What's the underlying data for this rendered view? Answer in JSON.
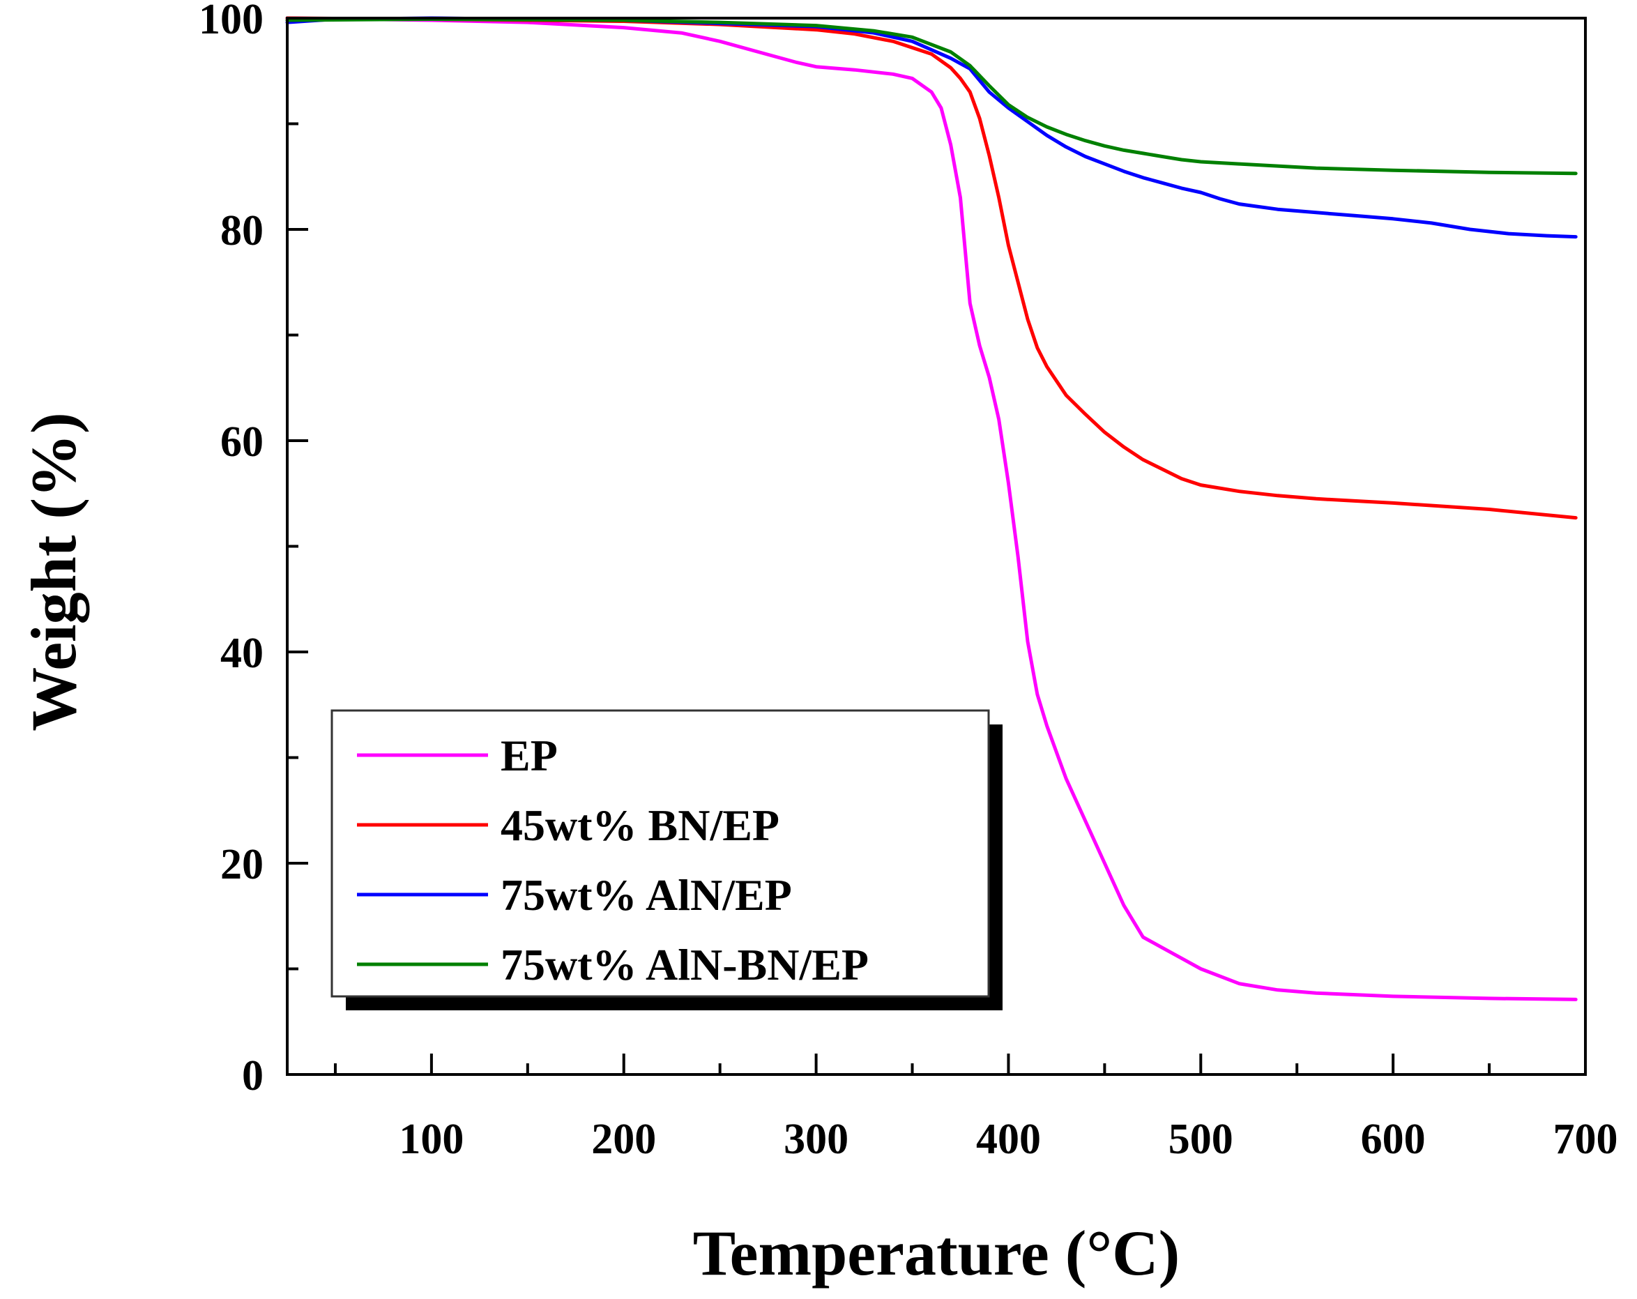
{
  "chart_data": {
    "type": "line",
    "title": "",
    "xlabel": "Temperature (°C)",
    "ylabel": "Weight (%)",
    "xlim": [
      25,
      700
    ],
    "ylim": [
      0,
      100
    ],
    "xticks": [
      100,
      200,
      300,
      400,
      500,
      600,
      700
    ],
    "yticks": [
      0,
      20,
      40,
      60,
      80,
      100
    ],
    "x_minor_step": 50,
    "y_minor_step": 10,
    "grid": false,
    "legend": {
      "position": "bottom-left",
      "shadow": true
    },
    "series": [
      {
        "name": "EP",
        "color": "#ff00ff",
        "points": [
          [
            25,
            100
          ],
          [
            100,
            99.8
          ],
          [
            150,
            99.6
          ],
          [
            200,
            99.1
          ],
          [
            230,
            98.6
          ],
          [
            250,
            97.8
          ],
          [
            270,
            96.8
          ],
          [
            290,
            95.8
          ],
          [
            300,
            95.4
          ],
          [
            320,
            95.1
          ],
          [
            340,
            94.7
          ],
          [
            350,
            94.3
          ],
          [
            360,
            93.0
          ],
          [
            365,
            91.5
          ],
          [
            370,
            88
          ],
          [
            375,
            83
          ],
          [
            378,
            77
          ],
          [
            380,
            73
          ],
          [
            385,
            69
          ],
          [
            390,
            66
          ],
          [
            395,
            62
          ],
          [
            400,
            56
          ],
          [
            405,
            49
          ],
          [
            410,
            41
          ],
          [
            415,
            36
          ],
          [
            420,
            33
          ],
          [
            430,
            28
          ],
          [
            440,
            24
          ],
          [
            450,
            20
          ],
          [
            460,
            16
          ],
          [
            470,
            13
          ],
          [
            475,
            12.5
          ],
          [
            480,
            12
          ],
          [
            490,
            11
          ],
          [
            500,
            10
          ],
          [
            520,
            8.6
          ],
          [
            540,
            8.0
          ],
          [
            560,
            7.7
          ],
          [
            600,
            7.4
          ],
          [
            650,
            7.2
          ],
          [
            695,
            7.1
          ]
        ]
      },
      {
        "name": "45wt% BN/EP",
        "color": "#ff0000",
        "points": [
          [
            25,
            100
          ],
          [
            100,
            99.9
          ],
          [
            200,
            99.7
          ],
          [
            250,
            99.4
          ],
          [
            300,
            98.9
          ],
          [
            320,
            98.5
          ],
          [
            340,
            97.8
          ],
          [
            360,
            96.6
          ],
          [
            370,
            95.3
          ],
          [
            375,
            94.3
          ],
          [
            380,
            93.0
          ],
          [
            385,
            90.5
          ],
          [
            390,
            87
          ],
          [
            395,
            83
          ],
          [
            400,
            78.5
          ],
          [
            405,
            75
          ],
          [
            410,
            71.5
          ],
          [
            415,
            68.8
          ],
          [
            420,
            67
          ],
          [
            430,
            64.3
          ],
          [
            440,
            62.5
          ],
          [
            450,
            60.8
          ],
          [
            460,
            59.4
          ],
          [
            470,
            58.2
          ],
          [
            480,
            57.3
          ],
          [
            490,
            56.4
          ],
          [
            500,
            55.8
          ],
          [
            520,
            55.2
          ],
          [
            540,
            54.8
          ],
          [
            560,
            54.5
          ],
          [
            580,
            54.3
          ],
          [
            600,
            54.1
          ],
          [
            650,
            53.5
          ],
          [
            695,
            52.7
          ]
        ]
      },
      {
        "name": "75wt% AlN/EP",
        "color": "#0000ff",
        "points": [
          [
            25,
            99.6
          ],
          [
            50,
            99.9
          ],
          [
            100,
            100
          ],
          [
            200,
            99.8
          ],
          [
            250,
            99.5
          ],
          [
            300,
            99.2
          ],
          [
            330,
            98.6
          ],
          [
            350,
            97.8
          ],
          [
            370,
            96.2
          ],
          [
            380,
            95.2
          ],
          [
            390,
            93.0
          ],
          [
            400,
            91.5
          ],
          [
            410,
            90.2
          ],
          [
            420,
            88.9
          ],
          [
            430,
            87.8
          ],
          [
            440,
            86.9
          ],
          [
            450,
            86.2
          ],
          [
            460,
            85.5
          ],
          [
            470,
            84.9
          ],
          [
            480,
            84.4
          ],
          [
            490,
            83.9
          ],
          [
            500,
            83.5
          ],
          [
            510,
            82.9
          ],
          [
            520,
            82.4
          ],
          [
            540,
            81.9
          ],
          [
            560,
            81.6
          ],
          [
            580,
            81.3
          ],
          [
            600,
            81.0
          ],
          [
            620,
            80.6
          ],
          [
            640,
            80.0
          ],
          [
            660,
            79.6
          ],
          [
            680,
            79.4
          ],
          [
            695,
            79.3
          ]
        ]
      },
      {
        "name": "75wt% AlN-BN/EP",
        "color": "#008000",
        "points": [
          [
            25,
            99.8
          ],
          [
            100,
            99.9
          ],
          [
            200,
            99.8
          ],
          [
            250,
            99.6
          ],
          [
            300,
            99.3
          ],
          [
            330,
            98.8
          ],
          [
            350,
            98.2
          ],
          [
            370,
            96.8
          ],
          [
            380,
            95.5
          ],
          [
            390,
            93.6
          ],
          [
            400,
            91.8
          ],
          [
            410,
            90.6
          ],
          [
            420,
            89.7
          ],
          [
            430,
            89.0
          ],
          [
            440,
            88.4
          ],
          [
            450,
            87.9
          ],
          [
            460,
            87.5
          ],
          [
            470,
            87.2
          ],
          [
            480,
            86.9
          ],
          [
            490,
            86.6
          ],
          [
            500,
            86.4
          ],
          [
            520,
            86.2
          ],
          [
            540,
            86.0
          ],
          [
            560,
            85.8
          ],
          [
            600,
            85.6
          ],
          [
            650,
            85.4
          ],
          [
            695,
            85.3
          ]
        ]
      }
    ]
  }
}
